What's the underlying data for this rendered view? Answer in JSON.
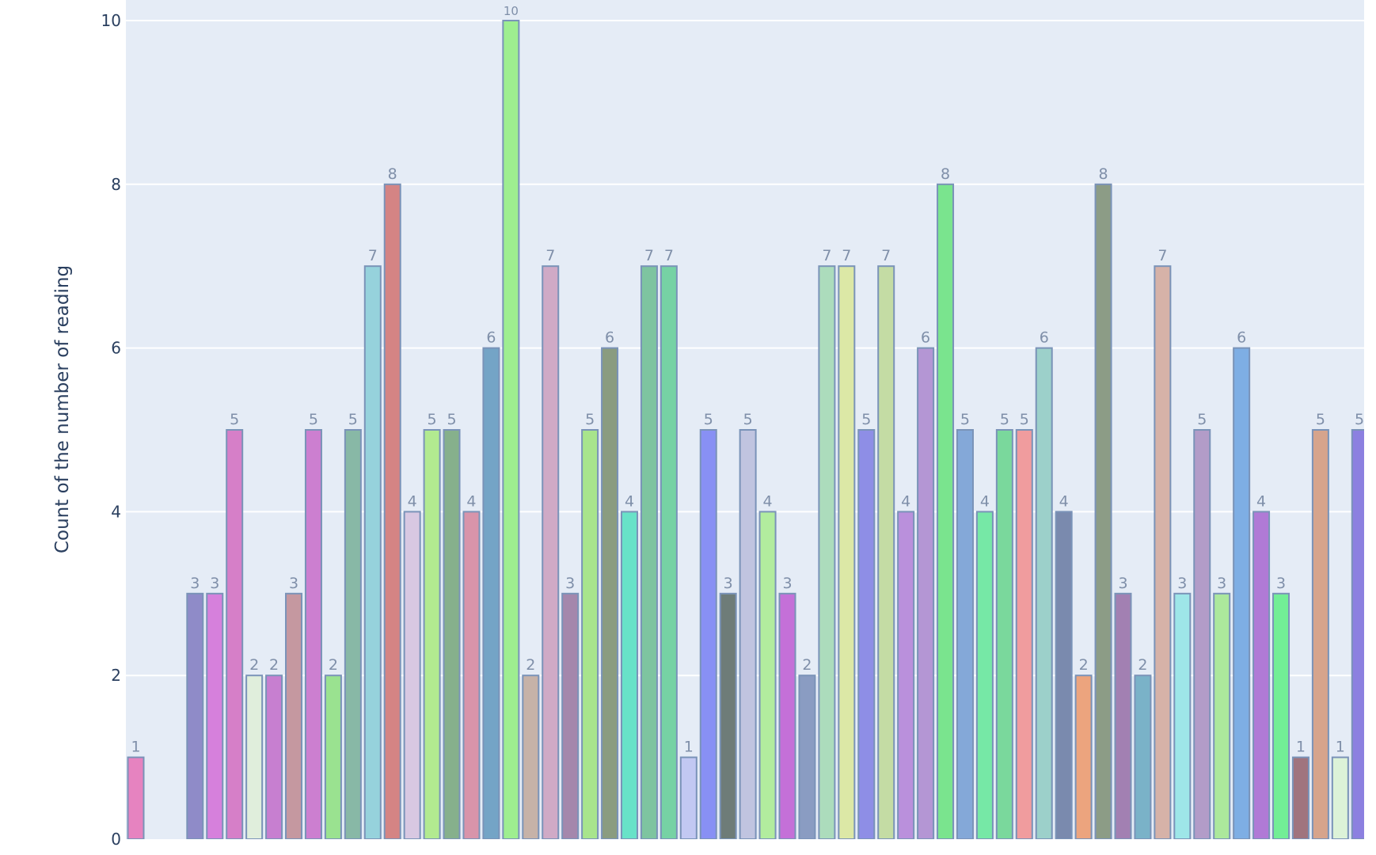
{
  "chart_data": {
    "type": "bar",
    "title": "",
    "xlabel": "",
    "ylabel": "Count of the number of reading",
    "ylim": [
      0,
      10.2
    ],
    "yticks": [
      0,
      2,
      4,
      6,
      8,
      10
    ],
    "grid": true,
    "plot_bgcolor": "#e5ecf6",
    "bar_outline_color": "#7a93b8",
    "values": [
      1,
      null,
      null,
      3,
      3,
      5,
      2,
      2,
      3,
      5,
      2,
      5,
      7,
      8,
      4,
      5,
      5,
      4,
      6,
      10,
      2,
      7,
      3,
      5,
      6,
      4,
      7,
      7,
      1,
      5,
      3,
      5,
      4,
      3,
      2,
      7,
      7,
      5,
      7,
      4,
      6,
      8,
      5,
      4,
      5,
      5,
      6,
      4,
      2,
      8,
      3,
      2,
      7,
      3,
      5,
      3,
      6,
      4,
      3,
      1,
      5,
      1,
      5
    ],
    "colors": [
      "#e683c0",
      null,
      null,
      "#8f8bc8",
      "#d680dc",
      "#d67fc8",
      "#e0eedc",
      "#c77fd0",
      "#c598a0",
      "#cc7fd0",
      "#9ae290",
      "#88b8a6",
      "#96d2dc",
      "#d48484",
      "#d8c8e2",
      "#b2ea90",
      "#86b08c",
      "#d894aa",
      "#74a4c6",
      "#9eee90",
      "#c6b2a8",
      "#cfaac6",
      "#a487ac",
      "#a8e48c",
      "#8a9c80",
      "#68e2c8",
      "#7ec4a0",
      "#76d2a4",
      "#c2c8f2",
      "#8890f4",
      "#6e7c78",
      "#c0c4e0",
      "#b2ec9e",
      "#c470d8",
      "#8a9cc2",
      "#acdcbc",
      "#dce8a6",
      "#8e8ee6",
      "#c4dca4",
      "#ba90dc",
      "#b496d4",
      "#7ae48e",
      "#84a8d8",
      "#76e8a6",
      "#7ad89c",
      "#f09c9e",
      "#9cd0ca",
      "#7a8aae",
      "#eca47e",
      "#8c9c86",
      "#a280b2",
      "#7ab2c8",
      "#d6b2a8",
      "#9ee6e8",
      "#b29cc8",
      "#ace89c",
      "#7eaee4",
      "#b07ad6",
      "#72ee96",
      "#a0747e",
      "#d6a48c",
      "#dcf2d8",
      "#8c80e0"
    ]
  }
}
